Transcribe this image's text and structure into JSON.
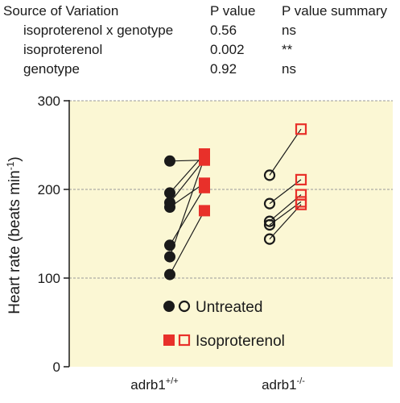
{
  "stats_table": {
    "headers": [
      "Source of Variation",
      "P value",
      "P value summary"
    ],
    "rows": [
      {
        "source": "isoproterenol x genotype",
        "p": "0.56",
        "summary": "ns"
      },
      {
        "source": "isoproterenol",
        "p": "0.002",
        "summary": "**"
      },
      {
        "source": "genotype",
        "p": "0.92",
        "summary": "ns"
      }
    ]
  },
  "chart_data": {
    "type": "scatter",
    "ylabel": "Heart rate (beats min",
    "ylabel_sup": "-1",
    "ylabel_close": ")",
    "ylim": [
      0,
      300
    ],
    "yticks": [
      0,
      100,
      200,
      300
    ],
    "gridlines": [
      100,
      200,
      300
    ],
    "plot_background": "#fbf7d4",
    "colors": {
      "untreated": "#1a1a1a",
      "isoproterenol": "#e8302a"
    },
    "groups": [
      {
        "label_base": "adrb1",
        "label_sup": "+/+",
        "marker_fill": "filled",
        "pairs": [
          {
            "untreated": 232,
            "isoproterenol": 233
          },
          {
            "untreated": 196,
            "isoproterenol": 240
          },
          {
            "untreated": 185,
            "isoproterenol": 234
          },
          {
            "untreated": 180,
            "isoproterenol": 207
          },
          {
            "untreated": 137,
            "isoproterenol": 202
          },
          {
            "untreated": 124,
            "isoproterenol": 236
          },
          {
            "untreated": 104,
            "isoproterenol": 176
          }
        ]
      },
      {
        "label_base": "adrb1",
        "label_sup": "-/-",
        "marker_fill": "open",
        "pairs": [
          {
            "untreated": 216,
            "isoproterenol": 268
          },
          {
            "untreated": 184,
            "isoproterenol": 211
          },
          {
            "untreated": 164,
            "isoproterenol": 194
          },
          {
            "untreated": 160,
            "isoproterenol": 186
          },
          {
            "untreated": 144,
            "isoproterenol": 183
          }
        ]
      }
    ],
    "legend": {
      "placement": "lower-right",
      "entries": [
        {
          "label": "Untreated",
          "marker": "circle",
          "color": "#1a1a1a"
        },
        {
          "label": "Isoproterenol",
          "marker": "square",
          "color": "#e8302a"
        }
      ]
    }
  }
}
